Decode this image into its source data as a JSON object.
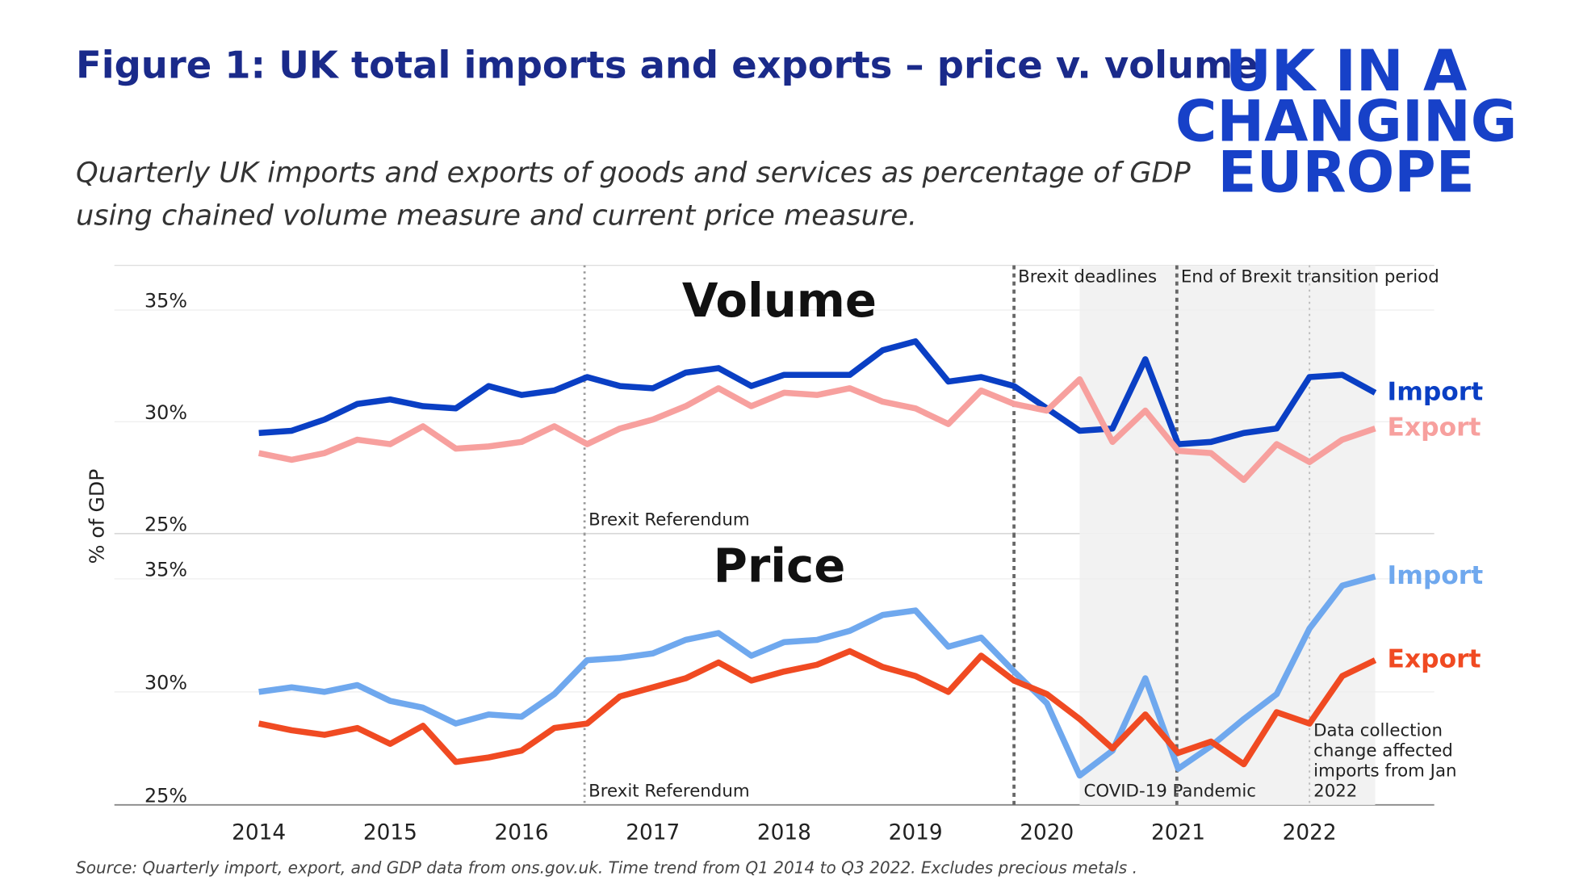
{
  "title": "Figure 1: UK total imports and exports – price v. volume",
  "subtitle": [
    "Quarterly UK imports and exports of goods and services as percentage of GDP",
    "using chained volume measure and current price measure."
  ],
  "logo": [
    "UK IN A",
    "CHANGING",
    "EUROPE"
  ],
  "y_axis_label": "% of GDP",
  "source": "Source: Quarterly import, export, and GDP data from ons.gov.uk. Time trend from Q1 2014 to Q3 2022. Excludes precious metals .",
  "xticks": [
    2014,
    2015,
    2016,
    2017,
    2018,
    2019,
    2020,
    2021,
    2022
  ],
  "xlim": [
    2012.9,
    2022.95
  ],
  "chart_data": [
    {
      "type": "line",
      "title": "Volume",
      "x": [
        2014,
        2014.25,
        2014.5,
        2014.75,
        2015,
        2015.25,
        2015.5,
        2015.75,
        2016,
        2016.25,
        2016.5,
        2016.75,
        2017,
        2017.25,
        2017.5,
        2017.75,
        2018,
        2018.25,
        2018.5,
        2018.75,
        2019,
        2019.25,
        2019.5,
        2019.75,
        2020,
        2020.25,
        2020.5,
        2020.75,
        2021,
        2021.25,
        2021.5,
        2021.75,
        2022,
        2022.25,
        2022.5
      ],
      "series": [
        {
          "name": "Import",
          "color": "#0a3fc4",
          "values": [
            29.5,
            29.6,
            30.1,
            30.8,
            31.0,
            30.7,
            30.6,
            31.6,
            31.2,
            31.4,
            32.0,
            31.6,
            31.5,
            32.2,
            32.4,
            31.6,
            32.1,
            32.1,
            32.1,
            33.2,
            33.6,
            31.8,
            32.0,
            31.6,
            30.6,
            29.6,
            29.7,
            32.8,
            29.0,
            29.1,
            29.5,
            29.7,
            32.0,
            32.1,
            31.3
          ]
        },
        {
          "name": "Export",
          "color": "#f7a09e",
          "values": [
            28.6,
            28.3,
            28.6,
            29.2,
            29.0,
            29.8,
            28.8,
            28.9,
            29.1,
            29.8,
            29.0,
            29.7,
            30.1,
            30.7,
            31.5,
            30.7,
            31.3,
            31.2,
            31.5,
            30.9,
            30.6,
            29.9,
            31.4,
            30.8,
            30.5,
            31.9,
            29.1,
            30.5,
            28.7,
            28.6,
            27.4,
            29.0,
            28.2,
            29.2,
            29.7
          ]
        }
      ],
      "ylim": [
        25,
        37
      ],
      "yticks": [
        {
          "value": 25,
          "label": "25%"
        },
        {
          "value": 30,
          "label": "30%"
        },
        {
          "value": 35,
          "label": "35%"
        }
      ],
      "grid": true,
      "shade": [
        2020.25,
        2022.5
      ],
      "annotations": [
        {
          "x": 2016.48,
          "label": "Brexit Referendum",
          "style": "dotted",
          "label_position": "bottom"
        },
        {
          "x": 2019.75,
          "label": "Brexit deadlines",
          "style": "dashed",
          "label_position": "top"
        },
        {
          "x": 2020.99,
          "label": "End of Brexit transition period",
          "style": "dashed",
          "label_position": "top"
        },
        {
          "x": 2022.0,
          "style": "faint"
        }
      ]
    },
    {
      "type": "line",
      "title": "Price",
      "x": [
        2014,
        2014.25,
        2014.5,
        2014.75,
        2015,
        2015.25,
        2015.5,
        2015.75,
        2016,
        2016.25,
        2016.5,
        2016.75,
        2017,
        2017.25,
        2017.5,
        2017.75,
        2018,
        2018.25,
        2018.5,
        2018.75,
        2019,
        2019.25,
        2019.5,
        2019.75,
        2020,
        2020.25,
        2020.5,
        2020.75,
        2021,
        2021.25,
        2021.5,
        2021.75,
        2022,
        2022.25,
        2022.5
      ],
      "series": [
        {
          "name": "Import",
          "color": "#6fa8ee",
          "values": [
            30.0,
            30.2,
            30.0,
            30.3,
            29.6,
            29.3,
            28.6,
            29.0,
            28.9,
            29.9,
            31.4,
            31.5,
            31.7,
            32.3,
            32.6,
            31.6,
            32.2,
            32.3,
            32.7,
            33.4,
            33.6,
            32.0,
            32.4,
            30.9,
            29.5,
            26.3,
            27.4,
            30.6,
            26.6,
            27.6,
            28.8,
            29.9,
            32.8,
            34.7,
            35.1
          ]
        },
        {
          "name": "Export",
          "color": "#f04a22",
          "values": [
            28.6,
            28.3,
            28.1,
            28.4,
            27.7,
            28.5,
            26.9,
            27.1,
            27.4,
            28.4,
            28.6,
            29.8,
            30.2,
            30.6,
            31.3,
            30.5,
            30.9,
            31.2,
            31.8,
            31.1,
            30.7,
            30.0,
            31.6,
            30.5,
            29.9,
            28.8,
            27.5,
            29.0,
            27.3,
            27.8,
            26.8,
            29.1,
            28.6,
            30.7,
            31.4
          ]
        }
      ],
      "ylim": [
        25,
        37
      ],
      "yticks": [
        {
          "value": 25,
          "label": "25%"
        },
        {
          "value": 30,
          "label": "30%"
        },
        {
          "value": 35,
          "label": "35%"
        }
      ],
      "grid": true,
      "shade": [
        2020.25,
        2022.5
      ],
      "shade_label": "COVID-19 Pandemic",
      "annotations": [
        {
          "x": 2016.48,
          "label": "Brexit Referendum",
          "style": "dotted",
          "label_position": "bottom"
        },
        {
          "x": 2019.75,
          "style": "dashed"
        },
        {
          "x": 2020.99,
          "style": "dashed"
        },
        {
          "x": 2022.0,
          "label": "Data collection change affected imports from Jan 2022",
          "style": "faint",
          "label_position": "bottom"
        }
      ]
    }
  ]
}
